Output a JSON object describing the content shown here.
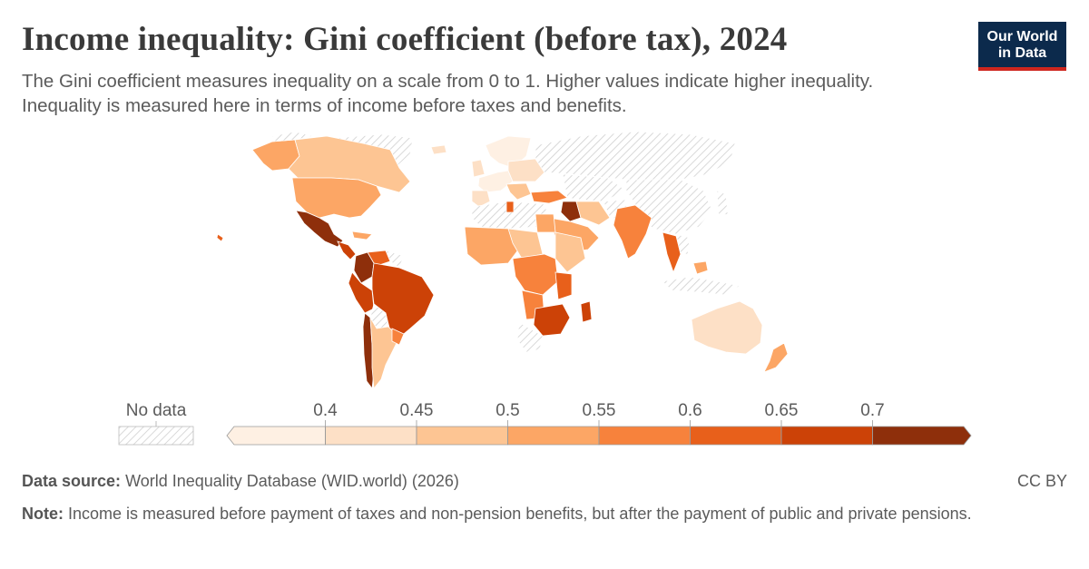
{
  "header": {
    "title": "Income inequality: Gini coefficient (before tax), 2024",
    "subtitle": "The Gini coefficient measures inequality on a scale from 0 to 1. Higher values indicate higher inequality. Inequality is measured here in terms of income before taxes and benefits."
  },
  "logo": {
    "line1": "Our World",
    "line2": "in Data"
  },
  "legend": {
    "no_data_label": "No data",
    "ticks": [
      "0.4",
      "0.45",
      "0.5",
      "0.55",
      "0.6",
      "0.65",
      "0.7"
    ],
    "colors": [
      "#fef0e3",
      "#fde0c6",
      "#fdc593",
      "#fca665",
      "#f7823c",
      "#e8601b",
      "#cc4207",
      "#8e2f0b"
    ],
    "no_data_color": "#d9d9d9"
  },
  "footer": {
    "source_label": "Data source:",
    "source_text": "World Inequality Database (WID.world) (2026)",
    "license": "CC BY",
    "note_label": "Note:",
    "note_text": "Income is measured before payment of taxes and non-pension benefits, but after the payment of public and private pensions."
  }
}
